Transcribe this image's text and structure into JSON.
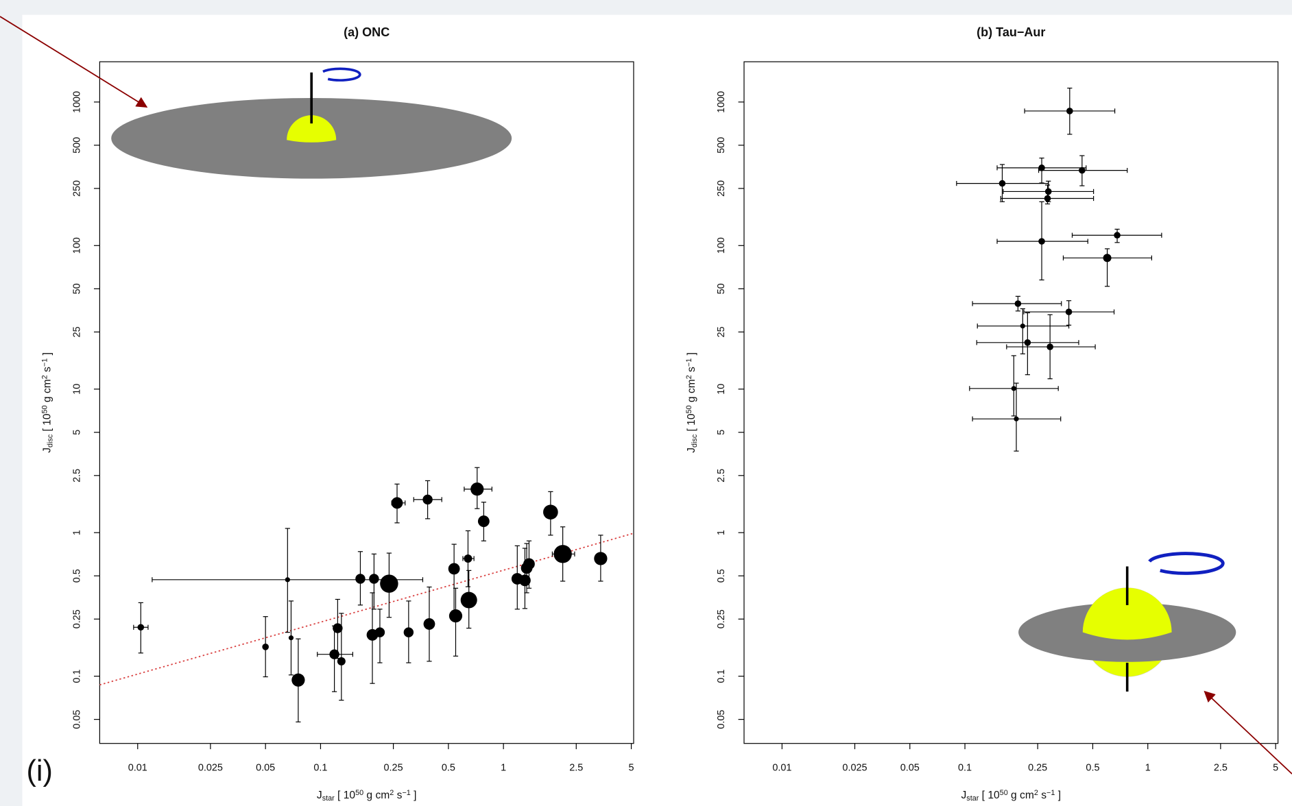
{
  "page_label": "(i)",
  "chart_data": [
    {
      "type": "scatter",
      "title": "(a) ONC",
      "xlabel": [
        "J",
        "star",
        " [ 10",
        "50",
        " g cm",
        "2",
        " s",
        "−1",
        " ]"
      ],
      "ylabel": [
        "J",
        "disc",
        " [ 10",
        "50",
        " g cm",
        "2",
        " s",
        "−1",
        " ]"
      ],
      "log_x": true,
      "log_y": true,
      "xlim": [
        0.0062,
        5.15
      ],
      "ylim": [
        0.034,
        1908
      ],
      "xticks": [
        0.01,
        0.025,
        0.05,
        0.1,
        0.25,
        0.5,
        1,
        2.5,
        5
      ],
      "yticks": [
        0.05,
        0.1,
        0.25,
        0.5,
        1,
        2.5,
        5,
        10,
        25,
        50,
        100,
        250,
        500,
        1000
      ],
      "series": [
        {
          "color": "#000000",
          "x": [
            0.0104,
            0.05,
            0.066,
            0.069,
            0.0755,
            0.119,
            0.124,
            0.13,
            0.165,
            0.192,
            0.196,
            0.211,
            0.237,
            0.262,
            0.303,
            0.385,
            0.393,
            0.537,
            0.548,
            0.64,
            0.647,
            0.718,
            0.78,
            1.19,
            1.31,
            1.34,
            1.38,
            1.81,
            2.11,
            3.4
          ],
          "values": [
            0.219,
            0.16,
            0.47,
            0.185,
            0.094,
            0.142,
            0.216,
            0.127,
            0.477,
            0.194,
            0.477,
            0.202,
            0.441,
            1.61,
            0.202,
            1.7,
            0.231,
            0.56,
            0.263,
            0.66,
            0.339,
            2.01,
            1.2,
            0.477,
            0.465,
            0.567,
            0.605,
            1.39,
            0.71,
            0.66
          ],
          "sizes": [
            4,
            4,
            3,
            3,
            8,
            6,
            6,
            5,
            6,
            7,
            6,
            6,
            11,
            7,
            6,
            6,
            7,
            7,
            8,
            5,
            10,
            8,
            7,
            7,
            7,
            7,
            7,
            9,
            11,
            8
          ],
          "x_low": [
            0.0095,
            null,
            0.012,
            null,
            null,
            0.096,
            null,
            null,
            null,
            null,
            null,
            null,
            null,
            0.245,
            null,
            0.323,
            null,
            null,
            null,
            0.6,
            null,
            0.61,
            null,
            null,
            null,
            null,
            null,
            null,
            1.85,
            null
          ],
          "x_high": [
            0.0114,
            null,
            0.362,
            null,
            null,
            0.15,
            null,
            null,
            null,
            null,
            null,
            null,
            null,
            0.29,
            null,
            0.46,
            null,
            null,
            null,
            0.69,
            null,
            0.865,
            null,
            null,
            null,
            null,
            null,
            null,
            2.45,
            null
          ],
          "y_low": [
            0.145,
            0.099,
            0.202,
            0.102,
            0.048,
            0.078,
            0.133,
            0.068,
            0.313,
            0.089,
            0.293,
            0.124,
            0.257,
            1.17,
            0.124,
            1.25,
            0.127,
            0.285,
            0.138,
            0.42,
            0.216,
            1.47,
            0.876,
            0.293,
            0.296,
            0.381,
            0.41,
            0.96,
            0.459,
            0.459
          ],
          "y_high": [
            0.325,
            0.26,
            1.07,
            0.334,
            0.182,
            0.224,
            0.343,
            0.274,
            0.738,
            0.381,
            0.71,
            0.293,
            0.72,
            2.18,
            0.334,
            2.3,
            0.418,
            0.83,
            0.41,
            1.03,
            0.545,
            2.84,
            1.63,
            0.81,
            0.778,
            0.84,
            0.876,
            1.93,
            1.097,
            0.96
          ]
        }
      ],
      "trend_line": {
        "color": "#d94040",
        "x": [
          0.0062,
          5.15
        ],
        "values": [
          0.087,
          0.99
        ]
      }
    },
    {
      "type": "scatter",
      "title": "(b) Tau−Aur",
      "xlabel": [
        "J",
        "star",
        " [ 10",
        "50",
        " g cm",
        "2",
        " s",
        "−1",
        " ]"
      ],
      "ylabel": [
        "J",
        "disc",
        " [ 10",
        "50",
        " g cm",
        "2",
        " s",
        "−1",
        " ]"
      ],
      "log_x": true,
      "log_y": true,
      "xlim": [
        0.0062,
        5.15
      ],
      "ylim": [
        0.034,
        1908
      ],
      "xticks": [
        0.01,
        0.025,
        0.05,
        0.1,
        0.25,
        0.5,
        1,
        2.5,
        5
      ],
      "yticks": [
        0.05,
        0.1,
        0.25,
        0.5,
        1,
        2.5,
        5,
        10,
        25,
        50,
        100,
        250,
        500,
        1000
      ],
      "series": [
        {
          "color": "#000000",
          "x": [
            0.374,
            0.263,
            0.437,
            0.16,
            0.286,
            0.283,
            0.263,
            0.68,
            0.6,
            0.195,
            0.37,
            0.207,
            0.22,
            0.292,
            0.185,
            0.191
          ],
          "values": [
            866,
            348,
            334,
            271,
            238,
            213,
            107,
            118,
            82,
            39.4,
            34.5,
            27.5,
            21.1,
            19.7,
            10.1,
            6.2
          ],
          "sizes": [
            4,
            4,
            4,
            4,
            4,
            4,
            4,
            4,
            5,
            4,
            4,
            3,
            4,
            4,
            3,
            3
          ],
          "x_low": [
            0.212,
            0.15,
            0.253,
            0.09,
            0.162,
            0.157,
            0.15,
            0.386,
            0.345,
            0.11,
            0.21,
            0.117,
            0.116,
            0.169,
            0.106,
            0.11
          ],
          "x_high": [
            0.66,
            0.46,
            0.772,
            0.286,
            0.505,
            0.505,
            0.47,
            1.19,
            1.05,
            0.337,
            0.654,
            0.37,
            0.419,
            0.516,
            0.324,
            0.334
          ],
          "y_low": [
            596,
            273,
            261,
            202,
            202,
            195,
            57.6,
            105,
            52,
            35,
            27.9,
            17.6,
            12.6,
            11.8,
            6.5,
            3.7
          ],
          "y_high": [
            1250,
            407,
            423,
            367,
            281,
            264,
            202,
            130,
            95,
            44.3,
            41.3,
            36.3,
            34,
            33,
            17.1,
            11
          ]
        }
      ]
    }
  ]
}
